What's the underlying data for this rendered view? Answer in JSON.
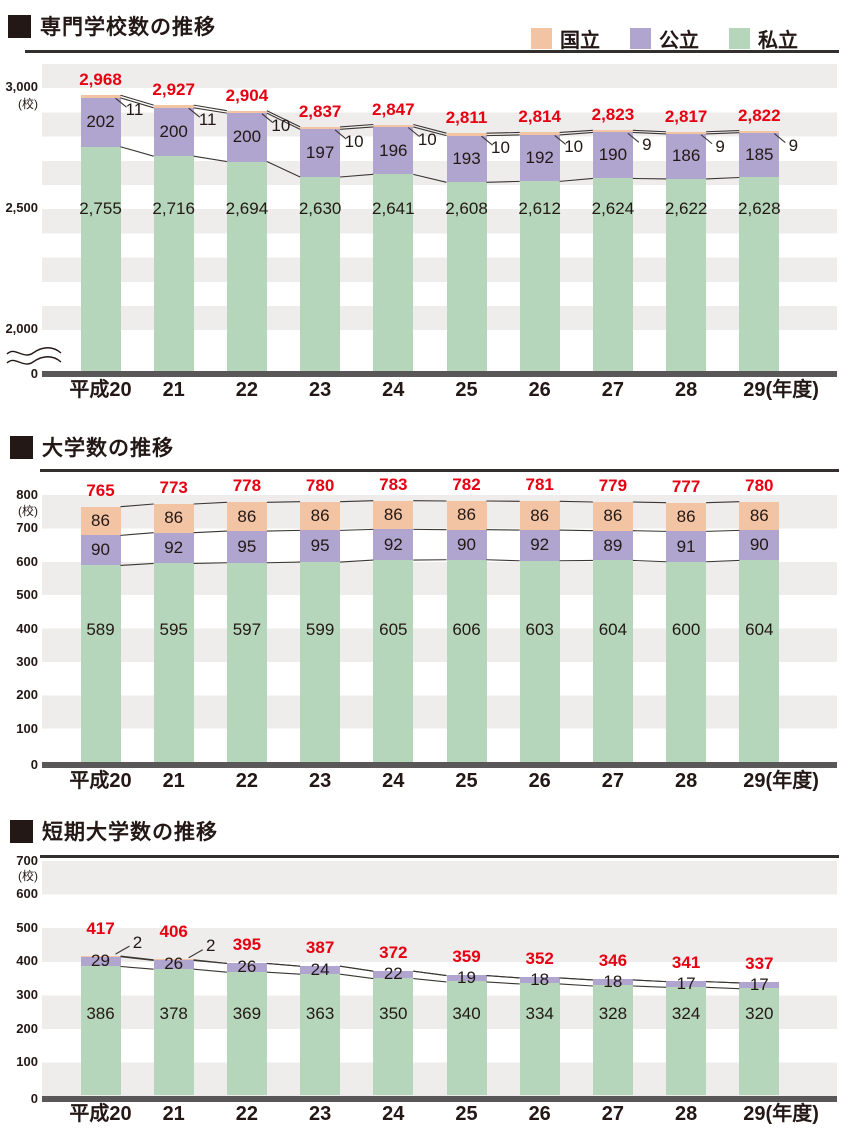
{
  "colors": {
    "national": "#f2c4a4",
    "public": "#afa5ce",
    "private": "#b5d6ba",
    "total_red": "#e60012",
    "text": "#231815",
    "stripe": "#eeedeb",
    "axis_bar": "#595757",
    "connector": "#3a3632",
    "title_black": "#231815"
  },
  "legend": {
    "items": [
      {
        "key": "national",
        "label": "国立",
        "color": "#f2c4a4"
      },
      {
        "key": "public",
        "label": "公立",
        "color": "#afa5ce"
      },
      {
        "key": "private",
        "label": "私立",
        "color": "#b5d6ba"
      }
    ]
  },
  "chart_data": [
    {
      "type": "bar",
      "stacked": true,
      "title": "専門学校数の推移",
      "unit": "(校)",
      "categories": [
        "平成20",
        "21",
        "22",
        "23",
        "24",
        "25",
        "26",
        "27",
        "28",
        "29(年度)"
      ],
      "series": [
        {
          "name": "国立",
          "key": "national",
          "color": "#f2c4a4",
          "values": [
            11,
            11,
            10,
            10,
            10,
            10,
            10,
            9,
            9,
            9
          ]
        },
        {
          "name": "公立",
          "key": "public",
          "color": "#afa5ce",
          "values": [
            202,
            200,
            200,
            197,
            196,
            193,
            192,
            190,
            186,
            185
          ]
        },
        {
          "name": "私立",
          "key": "private",
          "color": "#b5d6ba",
          "values": [
            2755,
            2716,
            2694,
            2630,
            2641,
            2608,
            2612,
            2624,
            2622,
            2628
          ]
        }
      ],
      "totals": [
        2968,
        2927,
        2904,
        2837,
        2847,
        2811,
        2814,
        2823,
        2817,
        2822
      ],
      "yticks": [
        {
          "v": 3000,
          "label": "3,000"
        },
        {
          "v": 2500,
          "label": "2,500"
        },
        {
          "v": 2000,
          "label": "2,000"
        },
        {
          "v": 0,
          "label": "0"
        }
      ],
      "ylim": [
        0,
        3100
      ],
      "axis_break": true,
      "grid": "horizontal-bands",
      "legend_position": "top-right"
    },
    {
      "type": "bar",
      "stacked": true,
      "title": "大学数の推移",
      "unit": "(校)",
      "categories": [
        "平成20",
        "21",
        "22",
        "23",
        "24",
        "25",
        "26",
        "27",
        "28",
        "29(年度)"
      ],
      "series": [
        {
          "name": "国立",
          "key": "national",
          "color": "#f2c4a4",
          "values": [
            86,
            86,
            86,
            86,
            86,
            86,
            86,
            86,
            86,
            86
          ]
        },
        {
          "name": "公立",
          "key": "public",
          "color": "#afa5ce",
          "values": [
            90,
            92,
            95,
            95,
            92,
            90,
            92,
            89,
            91,
            90
          ]
        },
        {
          "name": "私立",
          "key": "private",
          "color": "#b5d6ba",
          "values": [
            589,
            595,
            597,
            599,
            605,
            606,
            603,
            604,
            600,
            604
          ]
        }
      ],
      "totals": [
        765,
        773,
        778,
        780,
        783,
        782,
        781,
        779,
        777,
        780
      ],
      "yticks": [
        {
          "v": 800,
          "label": "800"
        },
        {
          "v": 700,
          "label": "700"
        },
        {
          "v": 600,
          "label": "600"
        },
        {
          "v": 500,
          "label": "500"
        },
        {
          "v": 400,
          "label": "400"
        },
        {
          "v": 300,
          "label": "300"
        },
        {
          "v": 200,
          "label": "200"
        },
        {
          "v": 100,
          "label": "100"
        },
        {
          "v": 0,
          "label": "0"
        }
      ],
      "ylim": [
        0,
        800
      ],
      "axis_break": false,
      "grid": "horizontal-bands",
      "legend_position": "none"
    },
    {
      "type": "bar",
      "stacked": true,
      "title": "短期大学数の推移",
      "unit": "(校)",
      "categories": [
        "平成20",
        "21",
        "22",
        "23",
        "24",
        "25",
        "26",
        "27",
        "28",
        "29(年度)"
      ],
      "series": [
        {
          "name": "国立",
          "key": "national",
          "color": "#f2c4a4",
          "values": [
            2,
            2,
            0,
            0,
            0,
            0,
            0,
            0,
            0,
            0
          ]
        },
        {
          "name": "公立",
          "key": "public",
          "color": "#afa5ce",
          "values": [
            29,
            26,
            26,
            24,
            22,
            19,
            18,
            18,
            17,
            17
          ]
        },
        {
          "name": "私立",
          "key": "private",
          "color": "#b5d6ba",
          "values": [
            386,
            378,
            369,
            363,
            350,
            340,
            334,
            328,
            324,
            320
          ]
        }
      ],
      "totals": [
        417,
        406,
        395,
        387,
        372,
        359,
        352,
        346,
        341,
        337
      ],
      "yticks": [
        {
          "v": 700,
          "label": "700"
        },
        {
          "v": 600,
          "label": "600"
        },
        {
          "v": 500,
          "label": "500"
        },
        {
          "v": 400,
          "label": "400"
        },
        {
          "v": 300,
          "label": "300"
        },
        {
          "v": 200,
          "label": "200"
        },
        {
          "v": 100,
          "label": "100"
        },
        {
          "v": 0,
          "label": "0"
        }
      ],
      "ylim": [
        0,
        700
      ],
      "axis_break": false,
      "grid": "horizontal-bands",
      "legend_position": "none"
    }
  ]
}
